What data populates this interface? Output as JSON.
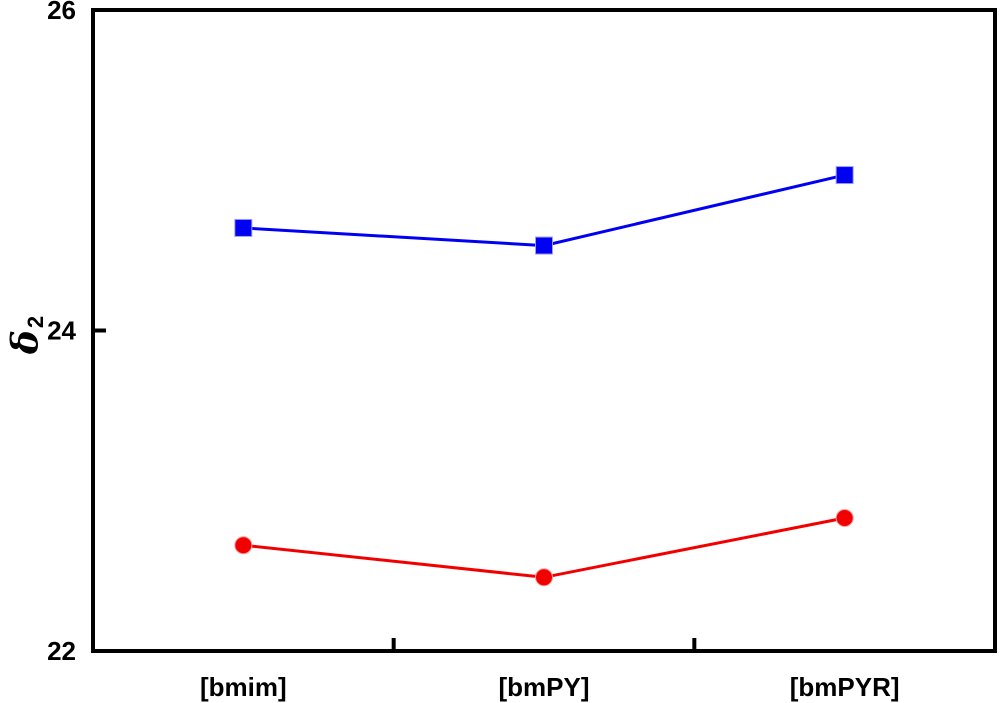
{
  "figure": {
    "background": "#ffffff",
    "axis_color": "#000000",
    "text_color": "#000000"
  },
  "chart_data": {
    "type": "line",
    "title": "",
    "categories": [
      "[bmim]",
      "[bmPY]",
      "[bmPYR]"
    ],
    "series": [
      {
        "name": "upper-series-blue-squares",
        "marker": "square",
        "color": "#0000f2",
        "marker_edge": "#9c9cff",
        "values": [
          24.64,
          24.53,
          24.97
        ]
      },
      {
        "name": "lower-series-red-circles",
        "marker": "circle",
        "color": "#f20000",
        "marker_edge": "#ff9c9c",
        "values": [
          22.66,
          22.46,
          22.83
        ]
      }
    ],
    "xlabel": "",
    "ylabel": {
      "symbol": "δ",
      "subscript": "2"
    },
    "ylim": [
      22,
      26
    ],
    "yticks": [
      22,
      24,
      26
    ],
    "ytick_labels": [
      "22",
      "24",
      "26"
    ],
    "x_boundary_ticks": true,
    "grid": false,
    "legend": "none"
  }
}
